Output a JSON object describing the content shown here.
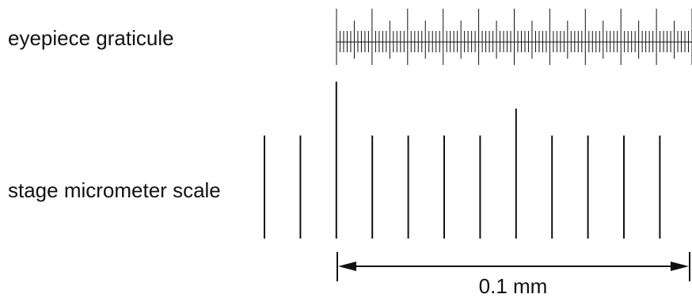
{
  "labels": {
    "eyepiece": "eyepiece graticule",
    "stage": "stage micrometer scale",
    "scale_bar": "0.1 mm"
  },
  "eyepiece_graticule": {
    "minor_divisions_per_major": 10,
    "major_divisions": 10
  },
  "stage_micrometer": {
    "lines": 12,
    "long_line_indices": [
      2
    ],
    "medium_line_indices": [
      7
    ]
  },
  "scale_bar": {
    "from_stage_line": 2,
    "length_mm": 0.1
  },
  "colors": {
    "ink": "#111111",
    "background": "#ffffff"
  }
}
